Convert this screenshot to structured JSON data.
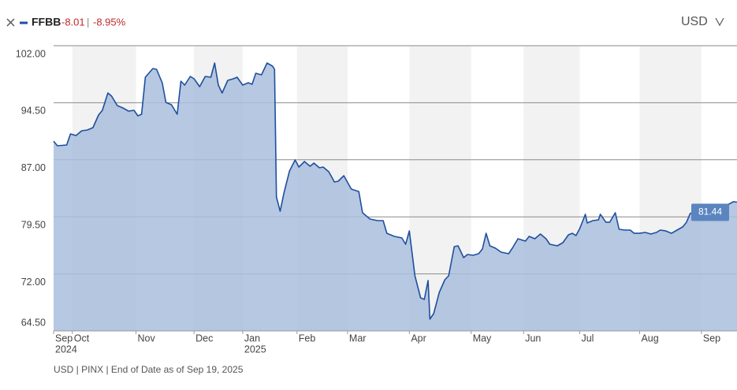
{
  "header": {
    "change": "-8.01",
    "separator": "|",
    "change_pct": "-8.95%",
    "currency": "USD"
  },
  "chart_data": {
    "type": "area",
    "series": [
      {
        "name": "FFBB",
        "color": "#1f4f9e",
        "fill": "#a9bedd",
        "x": [
          0,
          2,
          7,
          9,
          12,
          15,
          18,
          21,
          24,
          26,
          29,
          31,
          34,
          37,
          40,
          43,
          45,
          47,
          49,
          53,
          55,
          58,
          60,
          63,
          66,
          68,
          70,
          73,
          75,
          78,
          81,
          84,
          86,
          88,
          90,
          93,
          96,
          98,
          101,
          104,
          106,
          108,
          111,
          114,
          117,
          118,
          119,
          121,
          123,
          126,
          129,
          131,
          134,
          137,
          139,
          142,
          144,
          147,
          150,
          152,
          155,
          159,
          163,
          165,
          169,
          173,
          176,
          178,
          182,
          186,
          188,
          190,
          193,
          196,
          198,
          200,
          201,
          203,
          206,
          209,
          211,
          214,
          216,
          219,
          221,
          224,
          227,
          229,
          231,
          233,
          236,
          239,
          243,
          245,
          248,
          252,
          254,
          257,
          260,
          263,
          265,
          269,
          272,
          275,
          277,
          279,
          281,
          284,
          285,
          288,
          291,
          292,
          295,
          297,
          300,
          302,
          305,
          308,
          310,
          313,
          316,
          319,
          322,
          324,
          327,
          330,
          333,
          336,
          338,
          340,
          343,
          346,
          349,
          352,
          355,
          358,
          360,
          363,
          365
        ],
        "values": [
          89.46,
          88.84,
          88.95,
          90.4,
          90.19,
          90.81,
          90.92,
          91.23,
          92.88,
          93.5,
          95.78,
          95.37,
          94.13,
          93.82,
          93.4,
          93.5,
          92.78,
          92.99,
          97.86,
          99.0,
          98.89,
          97.13,
          94.54,
          94.23,
          92.99,
          97.34,
          96.82,
          97.96,
          97.65,
          96.61,
          97.96,
          97.86,
          99.72,
          96.82,
          95.78,
          97.44,
          97.65,
          97.86,
          96.82,
          97.13,
          96.92,
          98.37,
          98.17,
          99.72,
          99.31,
          98.89,
          82.11,
          80.24,
          82.63,
          85.53,
          86.98,
          86.05,
          86.77,
          86.15,
          86.56,
          85.94,
          86.05,
          85.42,
          84.08,
          84.18,
          84.91,
          83.15,
          82.83,
          80.04,
          79.21,
          79.0,
          79.0,
          77.34,
          76.93,
          76.72,
          75.89,
          77.65,
          71.75,
          68.85,
          68.64,
          71.13,
          66.05,
          66.78,
          69.57,
          71.23,
          71.75,
          75.58,
          75.69,
          74.13,
          74.55,
          74.44,
          74.65,
          75.27,
          77.34,
          75.69,
          75.38,
          74.86,
          74.65,
          75.38,
          76.62,
          76.31,
          76.93,
          76.62,
          77.24,
          76.62,
          75.89,
          75.69,
          76.1,
          77.14,
          77.34,
          77.03,
          77.96,
          79.83,
          78.69,
          79.0,
          79.1,
          79.83,
          78.79,
          78.79,
          80.04,
          77.86,
          77.76,
          77.76,
          77.34,
          77.34,
          77.45,
          77.24,
          77.45,
          77.76,
          77.65,
          77.34,
          77.76,
          78.17,
          78.79,
          79.93,
          80.24,
          80.24,
          80.55,
          80.55,
          80.66,
          80.86,
          81.07,
          81.48,
          81.44
        ]
      }
    ],
    "xlim": [
      0,
      365
    ],
    "xticks": [
      {
        "value": 0,
        "label": "Sep"
      },
      {
        "value": 10,
        "label": "Oct"
      },
      {
        "value": 44,
        "label": "Nov"
      },
      {
        "value": 75,
        "label": "Dec"
      },
      {
        "value": 101,
        "label": "Jan"
      },
      {
        "value": 130,
        "label": "Feb"
      },
      {
        "value": 157,
        "label": "Mar"
      },
      {
        "value": 190,
        "label": "Apr"
      },
      {
        "value": 223,
        "label": "May"
      },
      {
        "value": 251,
        "label": "Jun"
      },
      {
        "value": 281,
        "label": "Jul"
      },
      {
        "value": 313,
        "label": "Aug"
      },
      {
        "value": 346,
        "label": "Sep"
      }
    ],
    "x_year_labels": [
      {
        "value": 0,
        "label": "2024"
      },
      {
        "value": 101,
        "label": "2025"
      }
    ],
    "ylim": [
      64.5,
      102
    ],
    "yticks": [
      {
        "value": 64.5,
        "label": "64.50"
      },
      {
        "value": 72,
        "label": "72.00"
      },
      {
        "value": 79.5,
        "label": "79.50"
      },
      {
        "value": 87,
        "label": "87.00"
      },
      {
        "value": 94.5,
        "label": "94.50"
      },
      {
        "value": 102,
        "label": "102.00"
      }
    ],
    "grid": true
  },
  "footer": "USD | PINX | End of Date as of Sep 19, 2025"
}
